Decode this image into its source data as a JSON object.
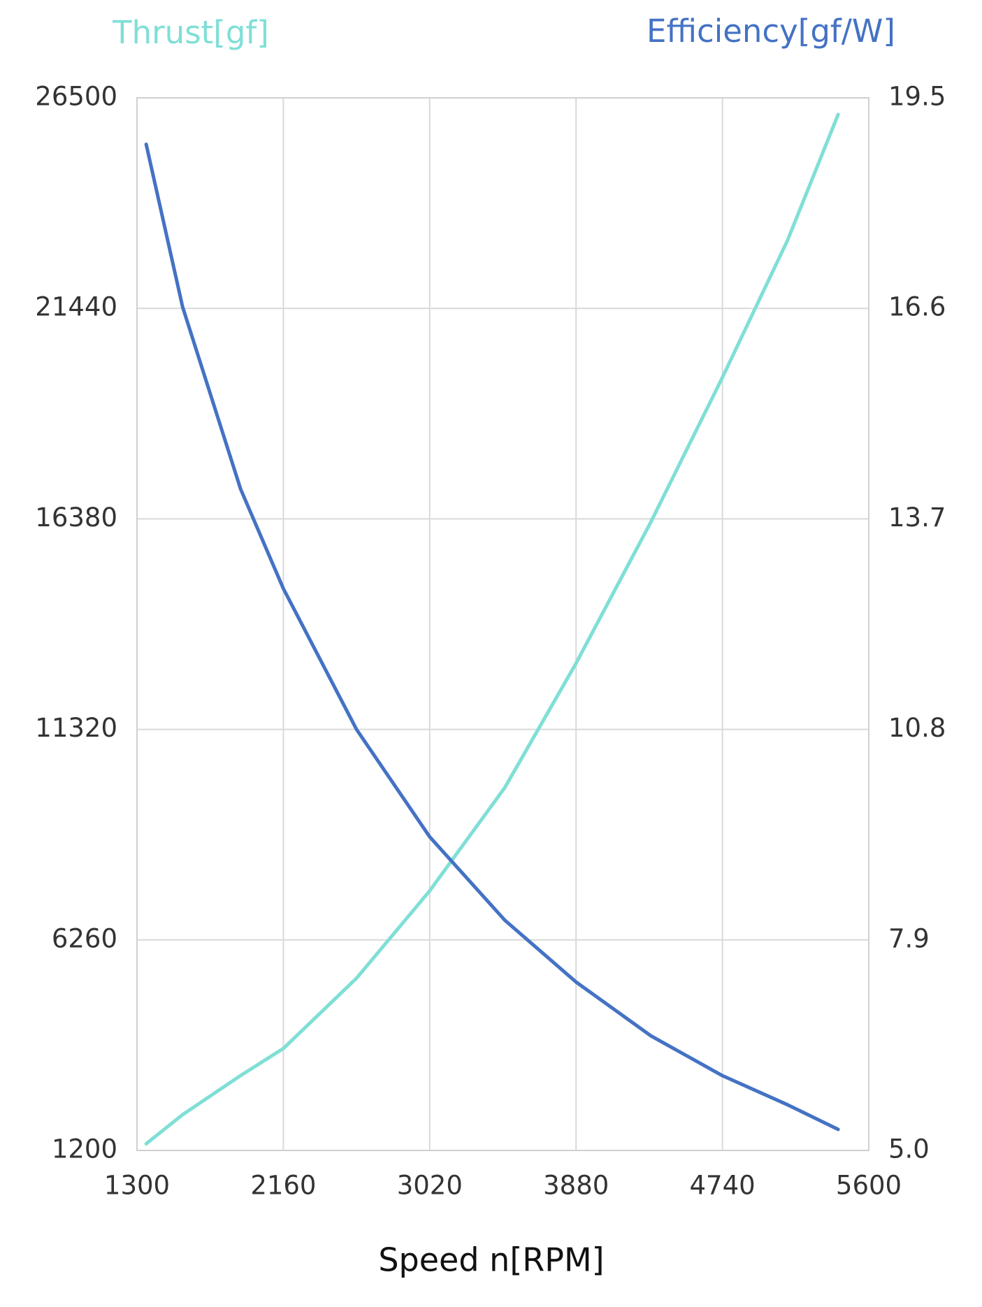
{
  "chart_data": {
    "type": "line",
    "title_left": "Thrust[gf]",
    "title_right": "Efficiency[gf/W]",
    "x_label": "Speed n[RPM]",
    "x": [
      1354,
      1568,
      1909,
      2160,
      2590,
      3020,
      3462,
      3880,
      4319,
      4740,
      5122,
      5420
    ],
    "series": [
      {
        "name": "Thrust[gf]",
        "color": "#7fdfd6",
        "values": [
          1360,
          2060,
          3000,
          3650,
          5340,
          7440,
          9925,
          12910,
          16300,
          19780,
          23070,
          26100
        ]
      },
      {
        "name": "Efficiency[gf/W]",
        "color": "#4472c4",
        "axis": "y2",
        "values": [
          18.86,
          16.62,
          14.11,
          12.74,
          10.8,
          9.32,
          8.17,
          7.32,
          6.58,
          6.03,
          5.63,
          5.29
        ]
      }
    ],
    "xlim": [
      1300,
      5600
    ],
    "xticks": [
      1300,
      2160,
      3020,
      3880,
      4740,
      5600
    ],
    "ylim": [
      1200,
      26500
    ],
    "yticks": [
      1200,
      6260,
      11320,
      16380,
      21440,
      26500
    ],
    "y2lim": [
      5,
      19.5
    ],
    "y2ticks": [
      {
        "value": 5,
        "label": "5.0"
      },
      {
        "value": 7.9,
        "label": "7.9"
      },
      {
        "value": 10.8,
        "label": "10.8"
      },
      {
        "value": 13.7,
        "label": "13.7"
      },
      {
        "value": 16.6,
        "label": "16.6"
      },
      {
        "value": 19.5,
        "label": "19.5"
      }
    ],
    "grid": true
  }
}
